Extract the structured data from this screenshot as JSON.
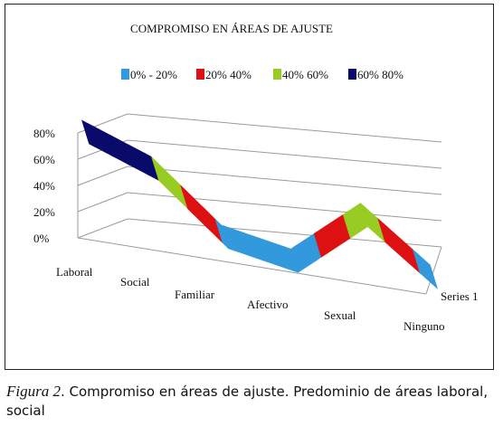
{
  "chart_data": {
    "type": "area",
    "subtype": "3d-surface",
    "title": "COMPROMISO EN ÁREAS DE AJUSTE",
    "categories": [
      "Laboral",
      "Social",
      "Familiar",
      "Afectivo",
      "Sexual",
      "Ninguno"
    ],
    "depth_label": "Series 1",
    "yticks": [
      "0%",
      "20%",
      "40%",
      "60%",
      "80%"
    ],
    "ylim": [
      0,
      0.8
    ],
    "series": [
      {
        "name": "Series 1",
        "values": [
          0.8,
          0.6,
          0.15,
          0.05,
          0.5,
          0.1
        ]
      }
    ],
    "bands": [
      {
        "label": "0% - 20%",
        "range": [
          0.0,
          0.2
        ],
        "color": "#3399dd"
      },
      {
        "label": "20% 40%",
        "range": [
          0.2,
          0.4
        ],
        "color": "#dd1111"
      },
      {
        "label": "40% 60%",
        "range": [
          0.4,
          0.6
        ],
        "color": "#99cc22"
      },
      {
        "label": "60% 80%",
        "range": [
          0.6,
          0.8
        ],
        "color": "#0a0a6a"
      }
    ],
    "legend_position": "top",
    "grid": true
  },
  "caption": {
    "figure_label": "Figura 2",
    "text": ". Compromiso en áreas de ajuste. Predominio de áreas laboral, social"
  }
}
